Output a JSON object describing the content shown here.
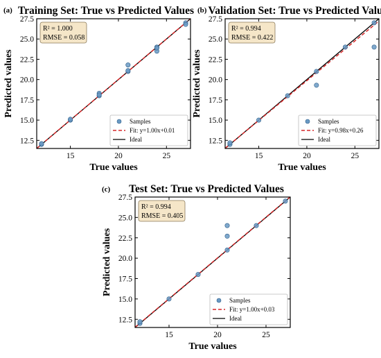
{
  "chart_data": [
    {
      "type": "scatter",
      "panel_label": "(a)",
      "title": "Training Set: True vs Predicted Values",
      "xlabel": "True values",
      "ylabel": "Predicted values",
      "xlim": [
        11.5,
        27.5
      ],
      "ylim": [
        11.5,
        27.5
      ],
      "xticks": [
        15,
        20,
        25
      ],
      "xtick_labels": [
        "15",
        "20",
        "25"
      ],
      "yticks": [
        12.5,
        15.0,
        17.5,
        20.0,
        22.5,
        25.0,
        27.5
      ],
      "ytick_labels": [
        "12.5",
        "15.0",
        "17.5",
        "20.0",
        "22.5",
        "25.0",
        "27.5"
      ],
      "stats": {
        "r2": "R² = 1.000",
        "rmse": "RMSE = 0.058"
      },
      "legend": {
        "placement": "lower-right",
        "entries": [
          "Samples",
          "Fit: y=1.00x+0.01",
          "Ideal"
        ]
      },
      "fit": {
        "slope": 1.0,
        "intercept": 0.01
      },
      "series": [
        {
          "name": "Samples",
          "points": [
            [
              12,
              12.0
            ],
            [
              12,
              12.1
            ],
            [
              15,
              15.0
            ],
            [
              15,
              15.1
            ],
            [
              18,
              18.0
            ],
            [
              18,
              18.3
            ],
            [
              18,
              18.1
            ],
            [
              21,
              21.0
            ],
            [
              21,
              21.8
            ],
            [
              21,
              21.1
            ],
            [
              24,
              24.0
            ],
            [
              24,
              23.5
            ],
            [
              24,
              23.9
            ],
            [
              27,
              27.0
            ],
            [
              27,
              26.8
            ]
          ]
        }
      ]
    },
    {
      "type": "scatter",
      "panel_label": "(b)",
      "title": "Validation Set: True vs Predicted Values",
      "xlabel": "True values",
      "ylabel": "Predicted values",
      "xlim": [
        11.5,
        27.5
      ],
      "ylim": [
        11.5,
        27.5
      ],
      "xticks": [
        15,
        20,
        25
      ],
      "xtick_labels": [
        "15",
        "20",
        "25"
      ],
      "yticks": [
        12.5,
        15.0,
        17.5,
        20.0,
        22.5,
        25.0,
        27.5
      ],
      "ytick_labels": [
        "12.5",
        "15.0",
        "17.5",
        "20.0",
        "22.5",
        "25.0",
        "27.5"
      ],
      "stats": {
        "r2": "R² = 0.994",
        "rmse": "RMSE = 0.422"
      },
      "legend": {
        "placement": "lower-right",
        "entries": [
          "Samples",
          "Fit: y=0.98x+0.26",
          "Ideal"
        ]
      },
      "fit": {
        "slope": 0.98,
        "intercept": 0.26
      },
      "series": [
        {
          "name": "Samples",
          "points": [
            [
              12,
              12.0
            ],
            [
              12,
              12.2
            ],
            [
              15,
              15.0
            ],
            [
              18,
              18.0
            ],
            [
              21,
              21.0
            ],
            [
              21,
              19.3
            ],
            [
              24,
              24.0
            ],
            [
              27,
              27.0
            ],
            [
              27,
              24.0
            ]
          ]
        }
      ]
    },
    {
      "type": "scatter",
      "panel_label": "(c)",
      "title": "Test Set: True vs Predicted Values",
      "xlabel": "True values",
      "ylabel": "Predicted values",
      "xlim": [
        11.5,
        27.5
      ],
      "ylim": [
        11.5,
        27.5
      ],
      "xticks": [
        15,
        20,
        25
      ],
      "xtick_labels": [
        "15",
        "20",
        "25"
      ],
      "yticks": [
        12.5,
        15.0,
        17.5,
        20.0,
        22.5,
        25.0,
        27.5
      ],
      "ytick_labels": [
        "12.5",
        "15.0",
        "17.5",
        "20.0",
        "22.5",
        "25.0",
        "27.5"
      ],
      "stats": {
        "r2": "R² = 0.994",
        "rmse": "RMSE = 0.405"
      },
      "legend": {
        "placement": "lower-right",
        "entries": [
          "Samples",
          "Fit: y=1.00x+0.03",
          "Ideal"
        ]
      },
      "fit": {
        "slope": 1.0,
        "intercept": 0.03
      },
      "series": [
        {
          "name": "Samples",
          "points": [
            [
              12,
              12.0
            ],
            [
              12,
              12.2
            ],
            [
              15,
              15.0
            ],
            [
              18,
              18.0
            ],
            [
              21,
              21.0
            ],
            [
              21,
              22.7
            ],
            [
              21,
              24.0
            ],
            [
              24,
              24.0
            ],
            [
              27,
              27.0
            ]
          ]
        }
      ]
    }
  ],
  "colors": {
    "samples": "#6a9ac4",
    "samples_edge": "#2f5f8a",
    "fit": "#d62728",
    "ideal": "#000000",
    "stats_box_fill": "#f5e6c8",
    "stats_box_edge": "#8a7a5a"
  }
}
